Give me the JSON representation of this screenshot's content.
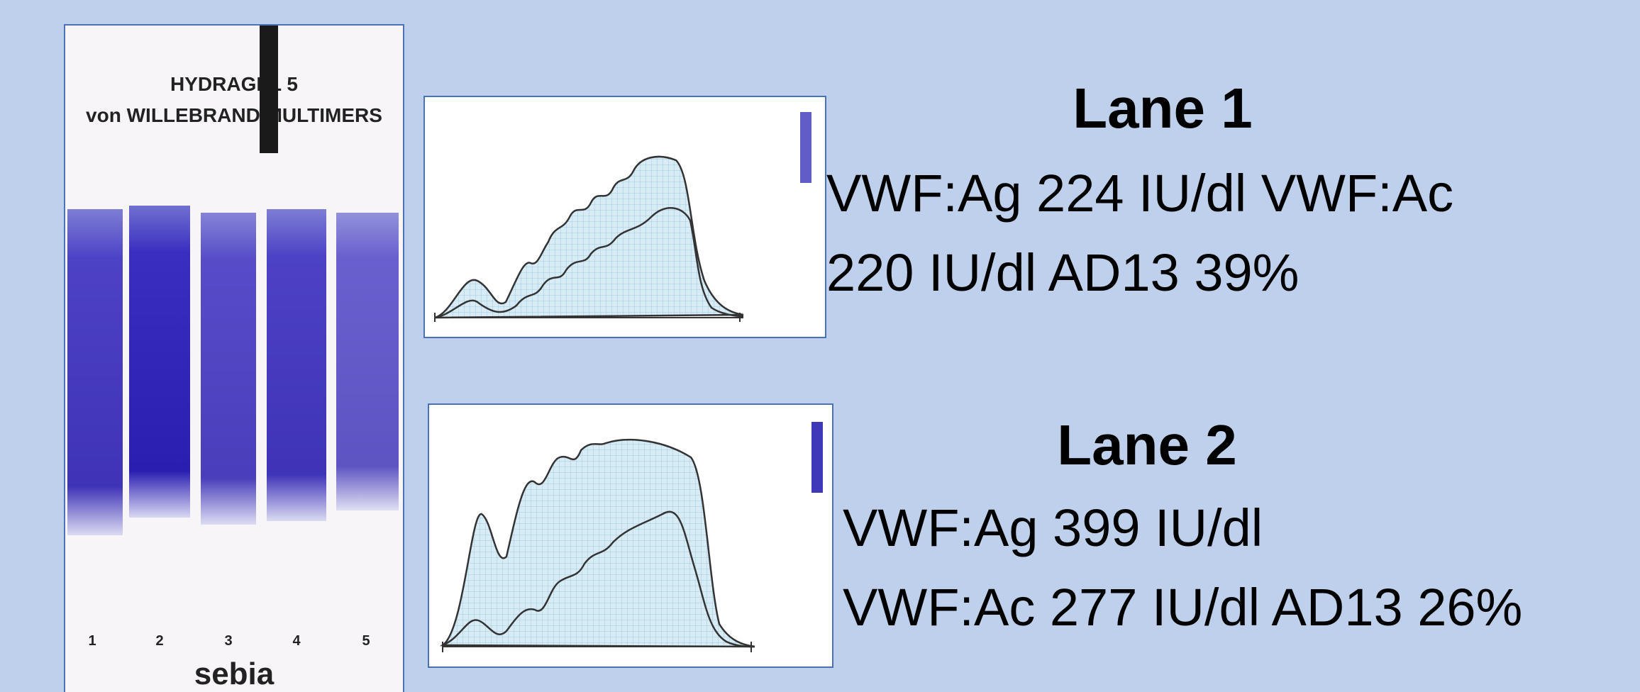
{
  "gel": {
    "title": "HYDRAGEL 5",
    "subtitle": "von WILLEBRAND MULTIMERS",
    "lanes": [
      "1",
      "2",
      "3",
      "4",
      "5"
    ],
    "brand": "sebia"
  },
  "results": [
    {
      "title": "Lane 1",
      "lines": [
        "VWF:Ag 224 IU/dl VWF:Ac",
        "220 IU/dl AD13 39%"
      ]
    },
    {
      "title": "Lane 2",
      "lines": [
        "VWF:Ag 399 IU/dl",
        "VWF:Ac 277 IU/dl AD13 26%"
      ]
    }
  ]
}
